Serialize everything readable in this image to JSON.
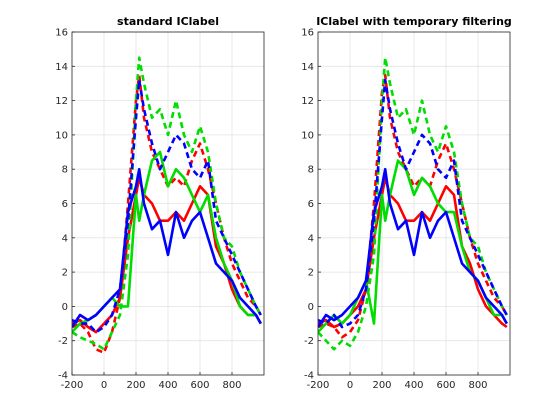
{
  "figure": {
    "background": "#ffffff"
  },
  "chart_data": [
    {
      "type": "line",
      "title": "standard IClabel",
      "xlabel": "",
      "ylabel": "",
      "xlim": [
        -200,
        1000
      ],
      "ylim": [
        -4,
        16
      ],
      "xticks": [
        -200,
        0,
        200,
        400,
        600,
        800
      ],
      "yticks": [
        -4,
        -2,
        0,
        2,
        4,
        6,
        8,
        10,
        12,
        14,
        16
      ],
      "grid": true,
      "series": [
        {
          "color": "#ff0000",
          "style": "dashed",
          "x": [
            -200,
            -150,
            -100,
            -50,
            0,
            50,
            100,
            150,
            200,
            220,
            250,
            300,
            350,
            400,
            450,
            500,
            550,
            600,
            650,
            700,
            750,
            800,
            850,
            900,
            950,
            980
          ],
          "y": [
            -1.2,
            -1.0,
            -1.5,
            -2.5,
            -2.7,
            -1.5,
            0.5,
            6,
            12,
            13.5,
            11,
            9,
            8,
            7,
            7.5,
            7,
            8.5,
            9.5,
            8,
            6,
            4,
            2.5,
            1.5,
            0.5,
            0,
            -0.5
          ]
        },
        {
          "color": "#ff0000",
          "style": "solid",
          "x": [
            -200,
            -150,
            -100,
            -50,
            0,
            50,
            100,
            150,
            200,
            220,
            250,
            300,
            350,
            400,
            450,
            500,
            550,
            600,
            650,
            700,
            750,
            800,
            850,
            900,
            950,
            980
          ],
          "y": [
            -1.0,
            -0.8,
            -1.2,
            -1.5,
            -1.0,
            -0.5,
            0.5,
            4,
            6.5,
            7.5,
            6.5,
            6,
            5,
            5,
            5.5,
            5,
            6,
            7,
            6.5,
            3.5,
            2.5,
            1,
            0,
            -0.5,
            -0.5,
            -1.0
          ]
        },
        {
          "color": "#00dd00",
          "style": "dashed",
          "x": [
            -200,
            -150,
            -100,
            -50,
            0,
            50,
            100,
            150,
            200,
            220,
            250,
            300,
            350,
            400,
            450,
            500,
            550,
            600,
            650,
            700,
            750,
            800,
            850,
            900,
            950,
            980
          ],
          "y": [
            -1.5,
            -1.8,
            -2.0,
            -2.2,
            -2.5,
            -1.5,
            -0.5,
            3,
            12,
            14.5,
            13,
            11,
            11.5,
            10,
            12,
            10,
            9,
            10.5,
            9,
            6,
            4,
            3.5,
            2,
            1,
            0,
            -0.5
          ]
        },
        {
          "color": "#00dd00",
          "style": "solid",
          "x": [
            -200,
            -150,
            -100,
            -50,
            0,
            50,
            100,
            150,
            200,
            220,
            250,
            300,
            350,
            400,
            450,
            500,
            550,
            600,
            650,
            700,
            750,
            800,
            850,
            900,
            950,
            980
          ],
          "y": [
            -1.5,
            -1.0,
            -0.8,
            -0.5,
            0,
            0.5,
            0,
            0,
            6.5,
            5,
            6.5,
            8.5,
            9,
            7,
            8,
            7.5,
            6.5,
            5.5,
            6.5,
            4,
            2.5,
            1.5,
            0,
            -0.5,
            -0.5,
            -1.0
          ]
        },
        {
          "color": "#0000ff",
          "style": "dashed",
          "x": [
            -200,
            -150,
            -100,
            -50,
            0,
            50,
            100,
            150,
            200,
            220,
            250,
            300,
            350,
            400,
            450,
            500,
            550,
            600,
            650,
            700,
            750,
            800,
            850,
            900,
            950,
            980
          ],
          "y": [
            -0.8,
            -1.0,
            -1.0,
            -1.5,
            -1.2,
            -0.5,
            1,
            5,
            11,
            13.2,
            11.5,
            9.5,
            8,
            9,
            10,
            9.5,
            8,
            7.5,
            8.5,
            5,
            4,
            3,
            2,
            1,
            0,
            -0.5
          ]
        },
        {
          "color": "#0000ff",
          "style": "solid",
          "x": [
            -200,
            -150,
            -100,
            -50,
            0,
            50,
            100,
            150,
            200,
            220,
            250,
            300,
            350,
            400,
            450,
            500,
            550,
            600,
            650,
            700,
            750,
            800,
            850,
            900,
            950,
            980
          ],
          "y": [
            -1.2,
            -0.5,
            -0.8,
            -0.5,
            0,
            0.5,
            1,
            5.5,
            7,
            8,
            6,
            4.5,
            5,
            3,
            5.5,
            4,
            5,
            5.5,
            4,
            2.5,
            2,
            1.5,
            0.5,
            0,
            -0.5,
            -1.0
          ]
        }
      ]
    },
    {
      "type": "line",
      "title": "IClabel with temporary filtering",
      "xlabel": "",
      "ylabel": "",
      "xlim": [
        -200,
        1000
      ],
      "ylim": [
        -4,
        16
      ],
      "xticks": [
        -200,
        0,
        200,
        400,
        600,
        800
      ],
      "yticks": [
        -4,
        -2,
        0,
        2,
        4,
        6,
        8,
        10,
        12,
        14,
        16
      ],
      "grid": true,
      "series": [
        {
          "color": "#ff0000",
          "style": "dashed",
          "x": [
            -200,
            -150,
            -100,
            -50,
            0,
            50,
            100,
            150,
            200,
            220,
            250,
            300,
            350,
            400,
            450,
            500,
            550,
            600,
            650,
            700,
            750,
            800,
            850,
            900,
            950,
            980
          ],
          "y": [
            -1.2,
            -1.0,
            -1.2,
            -1.8,
            -1.5,
            -0.8,
            1,
            6,
            12.5,
            13.5,
            11,
            9,
            8,
            7,
            7.5,
            7,
            8.5,
            9.5,
            8,
            6,
            4,
            2.5,
            1.5,
            0.5,
            0,
            -0.5
          ]
        },
        {
          "color": "#ff0000",
          "style": "solid",
          "x": [
            -200,
            -150,
            -100,
            -50,
            0,
            50,
            100,
            150,
            200,
            220,
            250,
            300,
            350,
            400,
            450,
            500,
            550,
            600,
            650,
            700,
            750,
            800,
            850,
            900,
            950,
            980
          ],
          "y": [
            -1.0,
            -0.8,
            -1.2,
            -1.0,
            -0.5,
            0,
            1,
            4,
            6.5,
            7.5,
            6.5,
            6,
            5,
            5,
            5.5,
            5,
            6,
            7,
            6.5,
            3.5,
            2.5,
            1,
            0,
            -0.5,
            -1.0,
            -1.2
          ]
        },
        {
          "color": "#00dd00",
          "style": "dashed",
          "x": [
            -200,
            -150,
            -100,
            -50,
            0,
            50,
            100,
            150,
            200,
            220,
            250,
            300,
            350,
            400,
            450,
            500,
            550,
            600,
            650,
            700,
            750,
            800,
            850,
            900,
            950,
            980
          ],
          "y": [
            -1.5,
            -2.0,
            -2.5,
            -2.0,
            -2.3,
            -1.5,
            0,
            3,
            12,
            14.5,
            13,
            11,
            11.5,
            10,
            12,
            10,
            9,
            10.5,
            9,
            6,
            4,
            3.5,
            2,
            1,
            0,
            -0.5
          ]
        },
        {
          "color": "#00dd00",
          "style": "solid",
          "x": [
            -200,
            -150,
            -100,
            -50,
            0,
            50,
            100,
            150,
            200,
            220,
            250,
            300,
            350,
            400,
            450,
            500,
            550,
            600,
            650,
            700,
            750,
            800,
            850,
            900,
            950,
            980
          ],
          "y": [
            -1.5,
            -1.0,
            -0.5,
            -1.0,
            -0.5,
            0.5,
            1.5,
            -1,
            6.5,
            5,
            6.5,
            8.5,
            8,
            6.5,
            7.5,
            7,
            6,
            5.5,
            5.5,
            3.5,
            2,
            1.5,
            0.5,
            -0.5,
            -0.5,
            -1.0
          ]
        },
        {
          "color": "#0000ff",
          "style": "dashed",
          "x": [
            -200,
            -150,
            -100,
            -50,
            0,
            50,
            100,
            150,
            200,
            220,
            250,
            300,
            350,
            400,
            450,
            500,
            550,
            600,
            650,
            700,
            750,
            800,
            850,
            900,
            950,
            980
          ],
          "y": [
            -0.8,
            -1.0,
            -0.5,
            -1.2,
            -1.0,
            -0.5,
            1,
            5,
            11,
            13.2,
            11.5,
            9.5,
            8,
            9,
            10,
            9.5,
            8,
            7.5,
            8.5,
            5,
            4,
            3,
            2,
            1,
            0,
            -0.5
          ]
        },
        {
          "color": "#0000ff",
          "style": "solid",
          "x": [
            -200,
            -150,
            -100,
            -50,
            0,
            50,
            100,
            150,
            200,
            220,
            250,
            300,
            350,
            400,
            450,
            500,
            550,
            600,
            650,
            700,
            750,
            800,
            850,
            900,
            950,
            980
          ],
          "y": [
            -1.2,
            -0.5,
            -0.8,
            -0.5,
            0,
            0.5,
            1.5,
            5.5,
            7,
            8,
            6,
            4.5,
            5,
            3,
            5.5,
            4,
            5,
            5.5,
            4,
            2.5,
            2,
            1.5,
            0.5,
            0,
            -0.5,
            -1.0
          ]
        }
      ]
    }
  ]
}
